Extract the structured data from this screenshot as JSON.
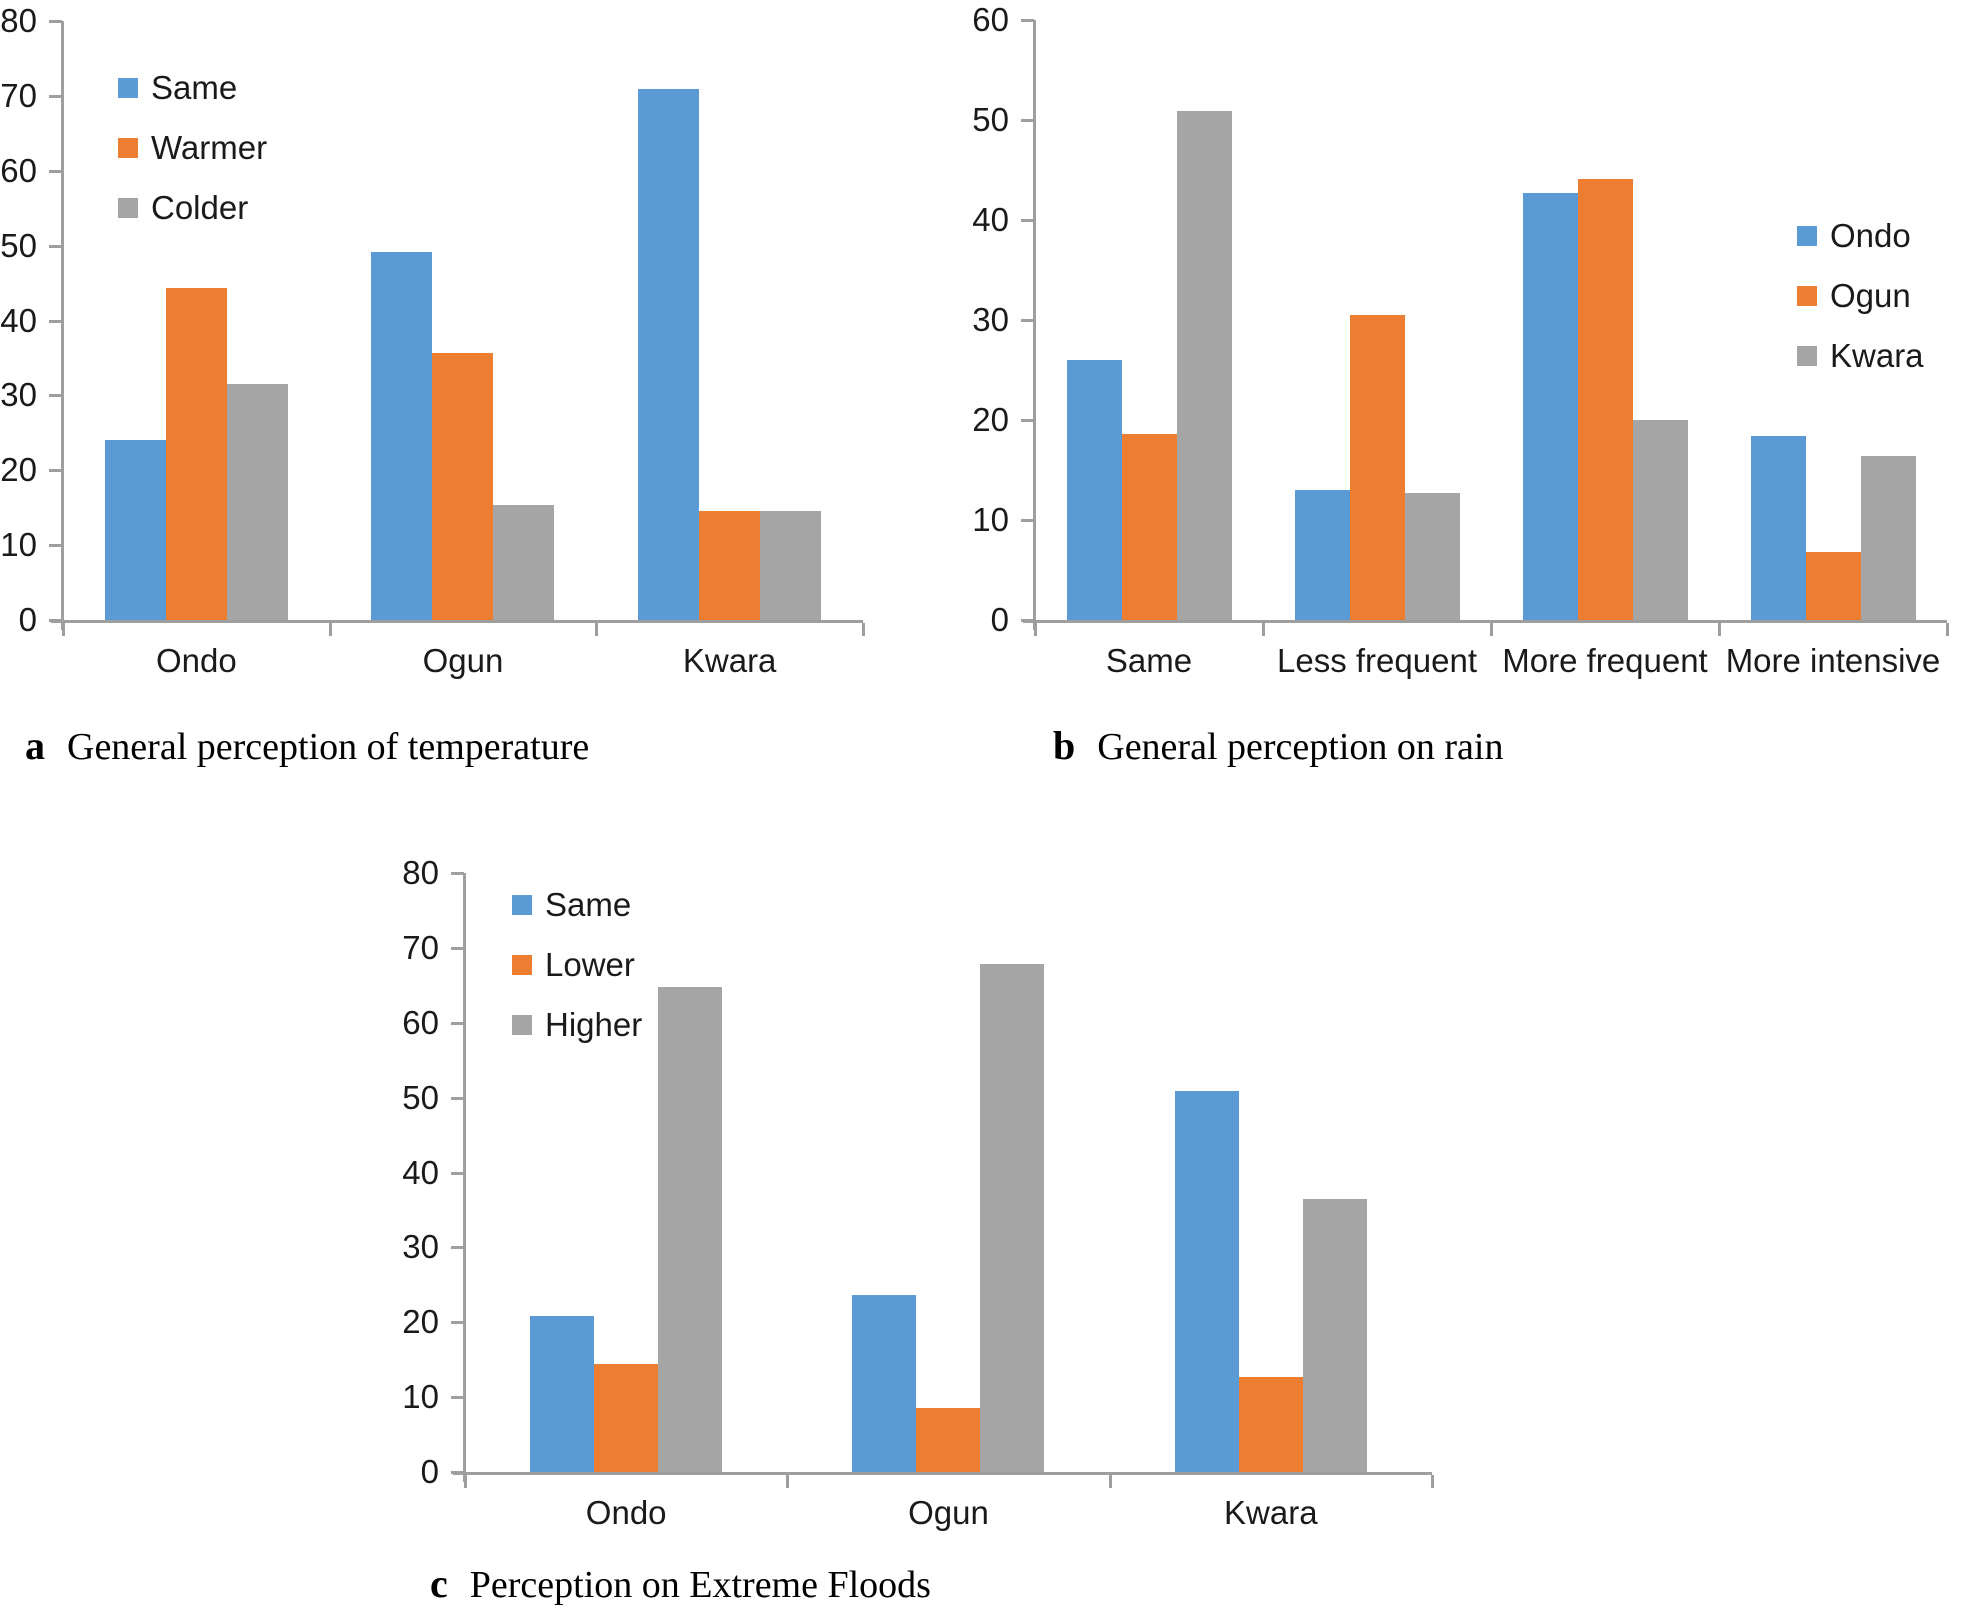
{
  "chart_data": [
    {
      "id": "a",
      "type": "bar",
      "caption_letter": "a",
      "title": "General perception of temperature",
      "xlabel": "",
      "ylabel": "",
      "ylim": [
        0,
        80
      ],
      "yticks": [
        0,
        10,
        20,
        30,
        40,
        50,
        60,
        70,
        80
      ],
      "grid": false,
      "legend_position": "top-left-inside",
      "categories": [
        "Ondo",
        "Ogun",
        "Kwara"
      ],
      "series": [
        {
          "name": "Same",
          "color": "#5B9BD5",
          "values": [
            24.1,
            49.2,
            70.9
          ]
        },
        {
          "name": "Warmer",
          "color": "#ED7D31",
          "values": [
            44.4,
            35.6,
            14.5
          ]
        },
        {
          "name": "Colder",
          "color": "#A5A5A5",
          "values": [
            31.5,
            15.3,
            14.5
          ]
        }
      ]
    },
    {
      "id": "b",
      "type": "bar",
      "caption_letter": "b",
      "title": "General perception on rain",
      "xlabel": "",
      "ylabel": "",
      "ylim": [
        0,
        60
      ],
      "yticks": [
        0,
        10,
        20,
        30,
        40,
        50,
        60
      ],
      "grid": false,
      "legend_position": "right-middle-inside",
      "categories": [
        "Same",
        "Less frequent",
        "More frequent",
        "More intensive"
      ],
      "series": [
        {
          "name": "Ondo",
          "color": "#5B9BD5",
          "values": [
            26.0,
            13.0,
            42.7,
            18.4
          ]
        },
        {
          "name": "Ogun",
          "color": "#ED7D31",
          "values": [
            18.6,
            30.5,
            44.1,
            6.8
          ]
        },
        {
          "name": "Kwara",
          "color": "#A5A5A5",
          "values": [
            50.9,
            12.7,
            20.0,
            16.4
          ]
        }
      ]
    },
    {
      "id": "c",
      "type": "bar",
      "caption_letter": "c",
      "title": "Perception on Extreme Floods",
      "xlabel": "",
      "ylabel": "",
      "ylim": [
        0,
        80
      ],
      "yticks": [
        0,
        10,
        20,
        30,
        40,
        50,
        60,
        70,
        80
      ],
      "grid": false,
      "legend_position": "top-left-inside",
      "categories": [
        "Ondo",
        "Ogun",
        "Kwara"
      ],
      "series": [
        {
          "name": "Same",
          "color": "#5B9BD5",
          "values": [
            20.8,
            23.7,
            50.9
          ]
        },
        {
          "name": "Lower",
          "color": "#ED7D31",
          "values": [
            14.4,
            8.5,
            12.7
          ]
        },
        {
          "name": "Higher",
          "color": "#A5A5A5",
          "values": [
            64.8,
            67.8,
            36.4
          ]
        }
      ]
    }
  ],
  "colors": {
    "series_blue": "#5B9BD5",
    "series_orange": "#ED7D31",
    "series_gray": "#A5A5A5",
    "axis": "#9E9E9E",
    "text": "#1A1A1A"
  }
}
